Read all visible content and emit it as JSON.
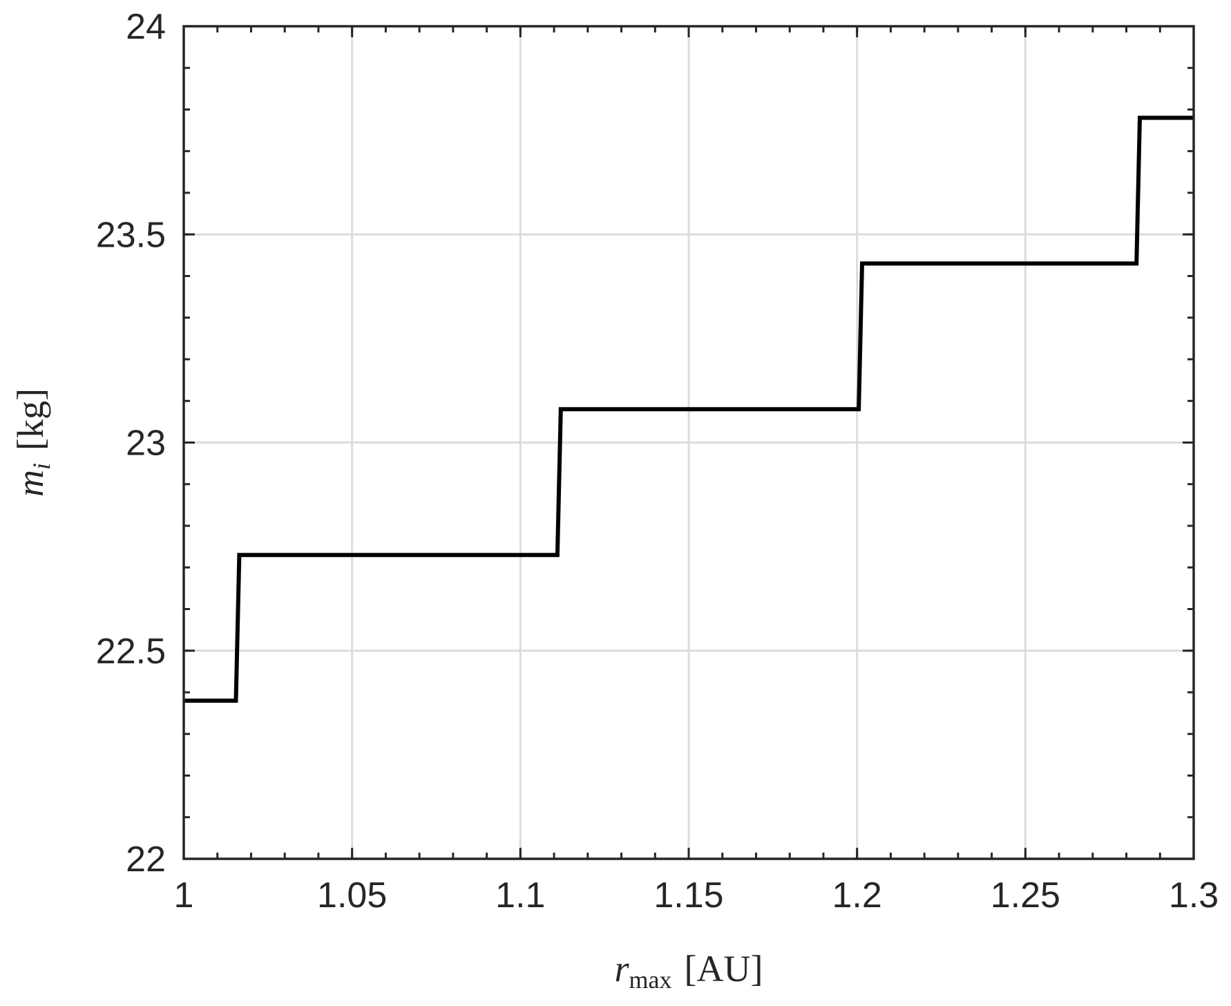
{
  "chart_data": {
    "type": "line",
    "title": "",
    "xlabel": {
      "var": "r",
      "sub": "max",
      "unit": "[AU]"
    },
    "ylabel": {
      "var": "m",
      "sub": "i",
      "unit": "[kg]"
    },
    "xlim": [
      1,
      1.3
    ],
    "ylim": [
      22,
      24
    ],
    "x_ticks": [
      1,
      1.05,
      1.1,
      1.15,
      1.2,
      1.25,
      1.3
    ],
    "x_tick_labels": [
      "1",
      "1.05",
      "1.1",
      "1.15",
      "1.2",
      "1.25",
      "1.3"
    ],
    "y_ticks": [
      22,
      22.5,
      23,
      23.5,
      24
    ],
    "y_tick_labels": [
      "22",
      "22.5",
      "23",
      "23.5",
      "24"
    ],
    "x_minor_step": 0.01,
    "y_minor_step": 0.1,
    "grid": true,
    "series": [
      {
        "color": "#000000",
        "x": [
          1.0,
          1.0155,
          1.0165,
          1.111,
          1.112,
          1.2005,
          1.2015,
          1.283,
          1.284,
          1.3
        ],
        "y": [
          22.38,
          22.38,
          22.73,
          22.73,
          23.08,
          23.08,
          23.43,
          23.43,
          23.78,
          23.78
        ]
      }
    ]
  }
}
